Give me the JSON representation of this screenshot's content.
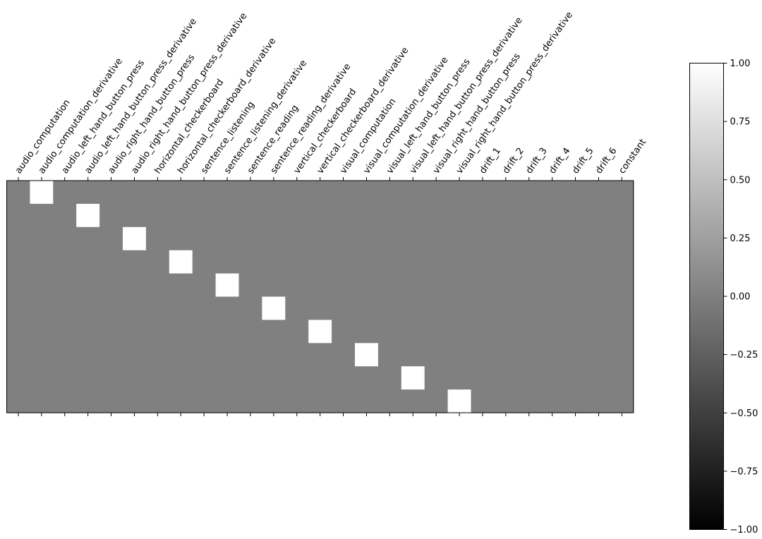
{
  "chart_data": {
    "type": "heatmap",
    "title": "",
    "xlabel": "",
    "ylabel": "",
    "colormap": "gray",
    "vmin": -1,
    "vmax": 1,
    "x_labels": [
      "audio_computation",
      "audio_computation_derivative",
      "audio_left_hand_button_press",
      "audio_left_hand_button_press_derivative",
      "audio_right_hand_button_press",
      "audio_right_hand_button_press_derivative",
      "horizontal_checkerboard",
      "horizontal_checkerboard_derivative",
      "sentence_listening",
      "sentence_listening_derivative",
      "sentence_reading",
      "sentence_reading_derivative",
      "vertical_checkerboard",
      "vertical_checkerboard_derivative",
      "visual_computation",
      "visual_computation_derivative",
      "visual_left_hand_button_press",
      "visual_left_hand_button_press_derivative",
      "visual_right_hand_button_press",
      "visual_right_hand_button_press_derivative",
      "drift_1",
      "drift_2",
      "drift_3",
      "drift_4",
      "drift_5",
      "drift_6",
      "constant"
    ],
    "matrix": [
      [
        0,
        1,
        0,
        0,
        0,
        0,
        0,
        0,
        0,
        0,
        0,
        0,
        0,
        0,
        0,
        0,
        0,
        0,
        0,
        0,
        0,
        0,
        0,
        0,
        0,
        0,
        0
      ],
      [
        0,
        0,
        0,
        1,
        0,
        0,
        0,
        0,
        0,
        0,
        0,
        0,
        0,
        0,
        0,
        0,
        0,
        0,
        0,
        0,
        0,
        0,
        0,
        0,
        0,
        0,
        0
      ],
      [
        0,
        0,
        0,
        0,
        0,
        1,
        0,
        0,
        0,
        0,
        0,
        0,
        0,
        0,
        0,
        0,
        0,
        0,
        0,
        0,
        0,
        0,
        0,
        0,
        0,
        0,
        0
      ],
      [
        0,
        0,
        0,
        0,
        0,
        0,
        0,
        1,
        0,
        0,
        0,
        0,
        0,
        0,
        0,
        0,
        0,
        0,
        0,
        0,
        0,
        0,
        0,
        0,
        0,
        0,
        0
      ],
      [
        0,
        0,
        0,
        0,
        0,
        0,
        0,
        0,
        0,
        1,
        0,
        0,
        0,
        0,
        0,
        0,
        0,
        0,
        0,
        0,
        0,
        0,
        0,
        0,
        0,
        0,
        0
      ],
      [
        0,
        0,
        0,
        0,
        0,
        0,
        0,
        0,
        0,
        0,
        0,
        1,
        0,
        0,
        0,
        0,
        0,
        0,
        0,
        0,
        0,
        0,
        0,
        0,
        0,
        0,
        0
      ],
      [
        0,
        0,
        0,
        0,
        0,
        0,
        0,
        0,
        0,
        0,
        0,
        0,
        0,
        1,
        0,
        0,
        0,
        0,
        0,
        0,
        0,
        0,
        0,
        0,
        0,
        0,
        0
      ],
      [
        0,
        0,
        0,
        0,
        0,
        0,
        0,
        0,
        0,
        0,
        0,
        0,
        0,
        0,
        0,
        1,
        0,
        0,
        0,
        0,
        0,
        0,
        0,
        0,
        0,
        0,
        0
      ],
      [
        0,
        0,
        0,
        0,
        0,
        0,
        0,
        0,
        0,
        0,
        0,
        0,
        0,
        0,
        0,
        0,
        0,
        1,
        0,
        0,
        0,
        0,
        0,
        0,
        0,
        0,
        0
      ],
      [
        0,
        0,
        0,
        0,
        0,
        0,
        0,
        0,
        0,
        0,
        0,
        0,
        0,
        0,
        0,
        0,
        0,
        0,
        0,
        1,
        0,
        0,
        0,
        0,
        0,
        0,
        0
      ]
    ],
    "colorbar": {
      "ticks": [
        1.0,
        0.75,
        0.5,
        0.25,
        0.0,
        -0.25,
        -0.5,
        -0.75,
        -1.0
      ],
      "tick_labels": [
        "1.00",
        "0.75",
        "0.50",
        "0.25",
        "0.00",
        "−0.25",
        "−0.50",
        "−0.75",
        "−1.00"
      ]
    },
    "grid": false,
    "legend": "none"
  }
}
